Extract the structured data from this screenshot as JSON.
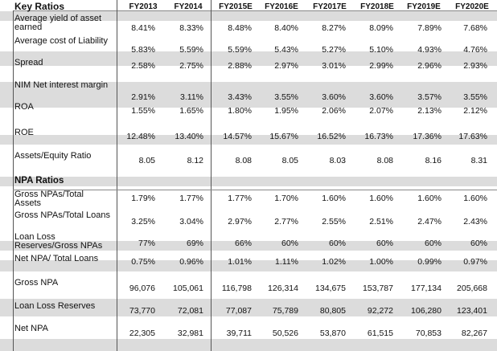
{
  "header": {
    "title": "Key Ratios",
    "years": [
      "FY2013",
      "FY2014",
      "FY2015E",
      "FY2016E",
      "FY2017E",
      "FY2018E",
      "FY2019E",
      "FY2020E"
    ]
  },
  "key_rows": [
    {
      "label": "Average yield of asset earned",
      "values": [
        "8.41%",
        "8.33%",
        "8.48%",
        "8.40%",
        "8.27%",
        "8.09%",
        "7.89%",
        "7.68%"
      ]
    },
    {
      "label": "Average cost of Liability",
      "values": [
        "5.83%",
        "5.59%",
        "5.59%",
        "5.43%",
        "5.27%",
        "5.10%",
        "4.93%",
        "4.76%"
      ]
    },
    {
      "label": "Spread",
      "values": [
        "2.58%",
        "2.75%",
        "2.88%",
        "2.97%",
        "3.01%",
        "2.99%",
        "2.96%",
        "2.93%"
      ]
    },
    {
      "label": "NIM Net interest margin",
      "values": [
        "2.91%",
        "3.11%",
        "3.43%",
        "3.55%",
        "3.60%",
        "3.60%",
        "3.57%",
        "3.55%"
      ]
    },
    {
      "label": "ROA",
      "values": [
        "1.55%",
        "1.65%",
        "1.80%",
        "1.95%",
        "2.06%",
        "2.07%",
        "2.13%",
        "2.12%"
      ]
    },
    {
      "label": "ROE",
      "values": [
        "12.48%",
        "13.40%",
        "14.57%",
        "15.67%",
        "16.52%",
        "16.73%",
        "17.36%",
        "17.63%"
      ]
    },
    {
      "label": "Assets/Equity Ratio",
      "values": [
        "8.05",
        "8.12",
        "8.08",
        "8.05",
        "8.03",
        "8.08",
        "8.16",
        "8.31"
      ]
    }
  ],
  "npa_section_title": "NPA Ratios",
  "npa_rows": [
    {
      "label": "Gross NPAs/Total Assets",
      "values": [
        "1.79%",
        "1.77%",
        "1.77%",
        "1.70%",
        "1.60%",
        "1.60%",
        "1.60%",
        "1.60%"
      ]
    },
    {
      "label": "Gross NPAs/Total Loans",
      "values": [
        "3.25%",
        "3.04%",
        "2.97%",
        "2.77%",
        "2.55%",
        "2.51%",
        "2.47%",
        "2.43%"
      ]
    },
    {
      "label": "Loan Loss Reserves/Gross NPAs",
      "values": [
        "77%",
        "69%",
        "66%",
        "60%",
        "60%",
        "60%",
        "60%",
        "60%"
      ]
    },
    {
      "label": "Net NPA/ Total Loans",
      "values": [
        "0.75%",
        "0.96%",
        "1.01%",
        "1.11%",
        "1.02%",
        "1.00%",
        "0.99%",
        "0.97%"
      ]
    },
    {
      "label": "Gross NPA",
      "values": [
        "96,076",
        "105,061",
        "116,798",
        "126,314",
        "134,675",
        "153,787",
        "177,134",
        "205,668"
      ]
    },
    {
      "label": "Loan Loss Reserves",
      "values": [
        "73,770",
        "72,081",
        "77,087",
        "75,789",
        "80,805",
        "92,272",
        "106,280",
        "123,401"
      ]
    },
    {
      "label": "Net NPA",
      "values": [
        "22,305",
        "32,981",
        "39,711",
        "50,526",
        "53,870",
        "61,515",
        "70,853",
        "82,267"
      ]
    }
  ]
}
